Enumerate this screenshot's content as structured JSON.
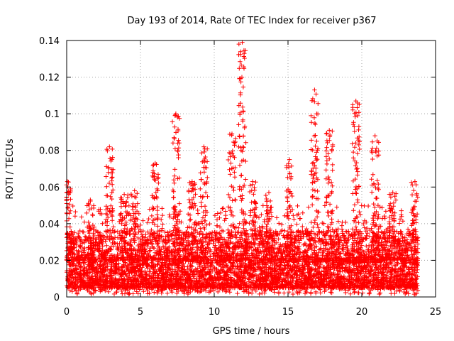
{
  "chart_data": {
    "type": "scatter",
    "title": "Day 193 of 2014, Rate Of TEC Index for receiver p367",
    "xlabel": "GPS time / hours",
    "ylabel": "ROTI / TECUs",
    "xlim": [
      0,
      25
    ],
    "ylim": [
      0,
      0.14
    ],
    "xticks": [
      0,
      5,
      10,
      15,
      20,
      25
    ],
    "xtick_labels": [
      "0",
      "5",
      "10",
      "15",
      "20",
      "25"
    ],
    "yticks": [
      0,
      0.02,
      0.04,
      0.06,
      0.08,
      0.1,
      0.12,
      0.14
    ],
    "ytick_labels": [
      "0",
      "0.02",
      "0.04",
      "0.06",
      "0.08",
      "0.1",
      "0.12",
      "0.14"
    ],
    "grid": true,
    "marker": "+",
    "series_color": "#ff0000",
    "x_data_range": [
      0,
      23.8
    ],
    "baseline_band": [
      0.005,
      0.03
    ],
    "spikes": [
      {
        "x": 0.05,
        "peak": 0.063
      },
      {
        "x": 0.4,
        "peak": 0.034
      },
      {
        "x": 1.6,
        "peak": 0.053
      },
      {
        "x": 2.9,
        "peak": 0.082
      },
      {
        "x": 3.9,
        "peak": 0.056
      },
      {
        "x": 4.6,
        "peak": 0.058
      },
      {
        "x": 6.0,
        "peak": 0.073
      },
      {
        "x": 7.4,
        "peak": 0.1
      },
      {
        "x": 8.5,
        "peak": 0.063
      },
      {
        "x": 9.3,
        "peak": 0.082
      },
      {
        "x": 11.2,
        "peak": 0.089
      },
      {
        "x": 11.9,
        "peak": 0.139
      },
      {
        "x": 12.6,
        "peak": 0.063
      },
      {
        "x": 13.7,
        "peak": 0.057
      },
      {
        "x": 15.1,
        "peak": 0.075
      },
      {
        "x": 16.8,
        "peak": 0.113
      },
      {
        "x": 17.8,
        "peak": 0.091
      },
      {
        "x": 19.6,
        "peak": 0.107
      },
      {
        "x": 20.9,
        "peak": 0.088
      },
      {
        "x": 22.1,
        "peak": 0.057
      },
      {
        "x": 23.6,
        "peak": 0.063
      }
    ]
  }
}
